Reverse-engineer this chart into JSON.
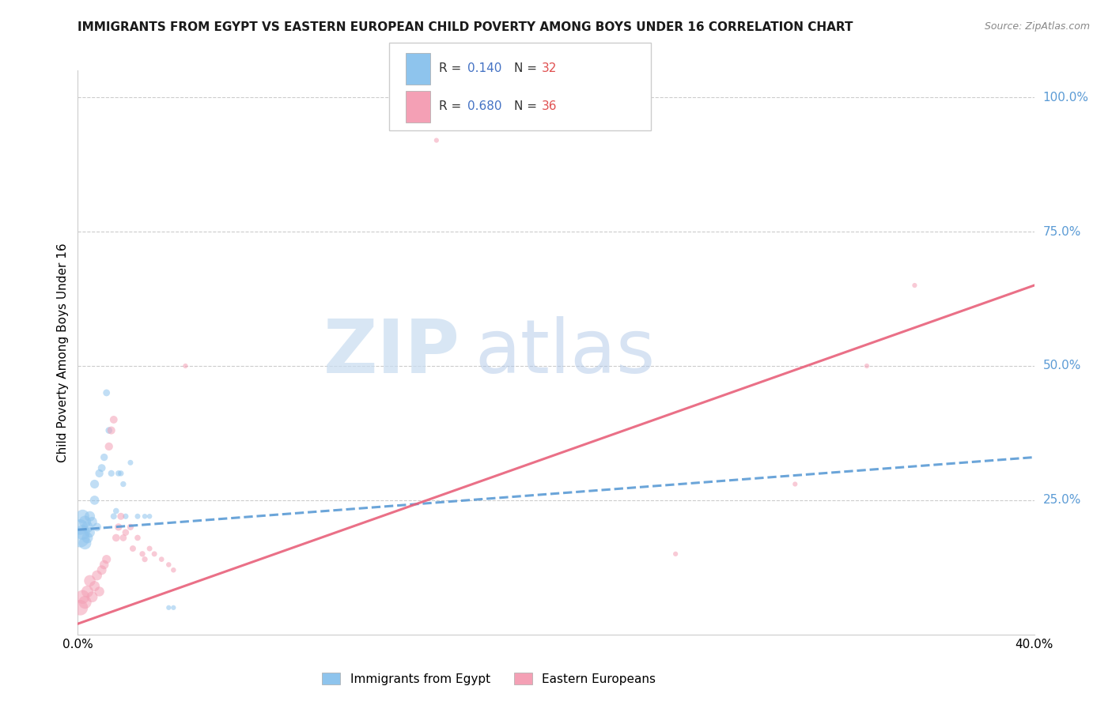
{
  "title": "IMMIGRANTS FROM EGYPT VS EASTERN EUROPEAN CHILD POVERTY AMONG BOYS UNDER 16 CORRELATION CHART",
  "source": "Source: ZipAtlas.com",
  "ylabel": "Child Poverty Among Boys Under 16",
  "xlim": [
    0.0,
    0.4
  ],
  "ylim": [
    0.0,
    1.05
  ],
  "yticks": [
    0.25,
    0.5,
    0.75,
    1.0
  ],
  "ytick_labels": [
    "25.0%",
    "50.0%",
    "75.0%",
    "100.0%"
  ],
  "xtick_show": [
    "0.0%",
    "40.0%"
  ],
  "color_blue": "#8EC4ED",
  "color_pink": "#F4A0B5",
  "color_blue_line": "#5B9BD5",
  "color_pink_line": "#E8607A",
  "watermark_zip": "ZIP",
  "watermark_atlas": "atlas",
  "series1_x": [
    0.001,
    0.001,
    0.002,
    0.002,
    0.003,
    0.003,
    0.004,
    0.004,
    0.005,
    0.005,
    0.006,
    0.007,
    0.007,
    0.008,
    0.009,
    0.01,
    0.011,
    0.012,
    0.013,
    0.014,
    0.015,
    0.016,
    0.017,
    0.018,
    0.019,
    0.02,
    0.022,
    0.025,
    0.028,
    0.03,
    0.038,
    0.04
  ],
  "series1_y": [
    0.18,
    0.2,
    0.19,
    0.22,
    0.17,
    0.21,
    0.2,
    0.18,
    0.22,
    0.19,
    0.21,
    0.25,
    0.28,
    0.2,
    0.3,
    0.31,
    0.33,
    0.45,
    0.38,
    0.3,
    0.22,
    0.23,
    0.3,
    0.3,
    0.28,
    0.22,
    0.32,
    0.22,
    0.22,
    0.22,
    0.05,
    0.05
  ],
  "series1_sizes": [
    300,
    200,
    180,
    150,
    130,
    120,
    110,
    100,
    90,
    85,
    80,
    70,
    65,
    60,
    55,
    50,
    45,
    40,
    38,
    35,
    33,
    30,
    30,
    28,
    28,
    27,
    25,
    25,
    22,
    22,
    20,
    20
  ],
  "series2_x": [
    0.001,
    0.002,
    0.003,
    0.004,
    0.005,
    0.006,
    0.007,
    0.008,
    0.009,
    0.01,
    0.011,
    0.012,
    0.013,
    0.014,
    0.015,
    0.016,
    0.017,
    0.018,
    0.019,
    0.02,
    0.022,
    0.023,
    0.025,
    0.027,
    0.028,
    0.03,
    0.032,
    0.035,
    0.038,
    0.04,
    0.045,
    0.15,
    0.25,
    0.3,
    0.33,
    0.35
  ],
  "series2_y": [
    0.05,
    0.07,
    0.06,
    0.08,
    0.1,
    0.07,
    0.09,
    0.11,
    0.08,
    0.12,
    0.13,
    0.14,
    0.35,
    0.38,
    0.4,
    0.18,
    0.2,
    0.22,
    0.18,
    0.19,
    0.2,
    0.16,
    0.18,
    0.15,
    0.14,
    0.16,
    0.15,
    0.14,
    0.13,
    0.12,
    0.5,
    0.92,
    0.15,
    0.28,
    0.5,
    0.65
  ],
  "series2_sizes": [
    200,
    160,
    140,
    120,
    110,
    100,
    90,
    85,
    80,
    75,
    70,
    65,
    55,
    52,
    50,
    48,
    45,
    42,
    40,
    38,
    35,
    33,
    30,
    28,
    27,
    25,
    25,
    23,
    22,
    22,
    20,
    20,
    20,
    20,
    20,
    20
  ],
  "trend1_x0": 0.0,
  "trend1_x1": 0.4,
  "trend1_y0": 0.195,
  "trend1_y1": 0.33,
  "trend2_x0": 0.0,
  "trend2_x1": 0.4,
  "trend2_y0": 0.02,
  "trend2_y1": 0.65
}
